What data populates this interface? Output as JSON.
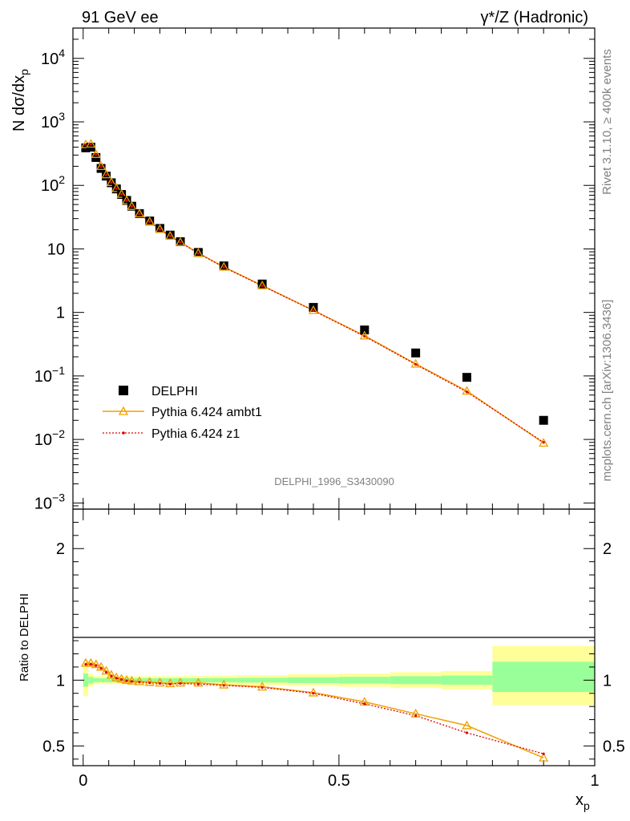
{
  "header": {
    "left": "91 GeV ee",
    "right": "γ*/Z (Hadronic)"
  },
  "side_text": {
    "top": "Rivet 3.1.10, ≥ 400k events",
    "bottom": "mcplots.cern.ch [arXiv:1306.3436]"
  },
  "watermark": "DELPHI_1996_S3430090",
  "colors": {
    "data": "#000000",
    "ambt1": "#f0a000",
    "z1": "#dd0000",
    "band_inner": "#99ff99",
    "band_outer": "#ffff99"
  },
  "chart_data": [
    {
      "type": "scatter",
      "panel": "main",
      "ylabel": "N dσ/dx",
      "ylabel_sub": "p",
      "yscale": "log",
      "ylim": [
        0.0008,
        30000
      ],
      "xlim": [
        -0.02,
        1.0
      ],
      "y_ticks": [
        {
          "v": 0.001,
          "m": "10",
          "e": "−3"
        },
        {
          "v": 0.01,
          "m": "10",
          "e": "−2"
        },
        {
          "v": 0.1,
          "m": "10",
          "e": "−1"
        },
        {
          "v": 1,
          "m": "1",
          "e": ""
        },
        {
          "v": 10,
          "m": "10",
          "e": ""
        },
        {
          "v": 100,
          "m": "10",
          "e": "2"
        },
        {
          "v": 1000,
          "m": "10",
          "e": "3"
        },
        {
          "v": 10000,
          "m": "10",
          "e": "4"
        }
      ],
      "legend": [
        "DELPHI",
        "Pythia 6.424 ambt1",
        "Pythia 6.424 z1"
      ],
      "legend_position": "lower-left",
      "x": [
        0.005,
        0.015,
        0.025,
        0.035,
        0.045,
        0.055,
        0.065,
        0.075,
        0.085,
        0.095,
        0.11,
        0.13,
        0.15,
        0.17,
        0.19,
        0.225,
        0.275,
        0.35,
        0.45,
        0.55,
        0.65,
        0.75,
        0.9
      ],
      "series": [
        {
          "name": "DELPHI",
          "values": [
            390,
            400,
            275,
            185,
            140,
            110,
            88,
            72,
            58,
            47,
            36,
            27.5,
            21,
            16.5,
            13,
            8.8,
            5.4,
            2.8,
            1.2,
            0.53,
            0.23,
            0.095,
            0.02
          ]
        },
        {
          "name": "Pythia 6.424 ambt1",
          "values": [
            440,
            450,
            310,
            200,
            148,
            112,
            90,
            73,
            58,
            47,
            36,
            27,
            20.5,
            16,
            12.8,
            8.6,
            5.2,
            2.65,
            1.08,
            0.43,
            0.155,
            0.058,
            0.0088
          ]
        },
        {
          "name": "Pythia 6.424 z1",
          "values": [
            435,
            445,
            305,
            198,
            146,
            111,
            89,
            72,
            57.5,
            46.5,
            35.5,
            26.8,
            20.3,
            15.9,
            12.7,
            8.5,
            5.15,
            2.62,
            1.07,
            0.42,
            0.152,
            0.056,
            0.009
          ]
        }
      ]
    },
    {
      "type": "line",
      "panel": "ratio",
      "ylabel": "Ratio to DELPHI",
      "xlabel": "x",
      "xlabel_sub": "p",
      "ylim": [
        0.35,
        2.3
      ],
      "xlim": [
        -0.02,
        1.0
      ],
      "y_ticks": [
        {
          "v": 0.5,
          "label": "0.5"
        },
        {
          "v": 1,
          "label": "1"
        },
        {
          "v": 2,
          "label": "2"
        }
      ],
      "x_ticks": [
        {
          "v": 0,
          "label": "0"
        },
        {
          "v": 0.5,
          "label": "0.5"
        },
        {
          "v": 1,
          "label": "1"
        }
      ],
      "x": [
        0.005,
        0.015,
        0.025,
        0.035,
        0.045,
        0.055,
        0.065,
        0.075,
        0.085,
        0.095,
        0.11,
        0.13,
        0.15,
        0.17,
        0.19,
        0.225,
        0.275,
        0.35,
        0.45,
        0.55,
        0.65,
        0.75,
        0.9
      ],
      "series": [
        {
          "name": "Pythia 6.424 ambt1",
          "values": [
            1.13,
            1.13,
            1.12,
            1.1,
            1.07,
            1.04,
            1.02,
            1.01,
            1.0,
            0.995,
            0.99,
            0.985,
            0.98,
            0.975,
            0.98,
            0.98,
            0.965,
            0.95,
            0.905,
            0.835,
            0.745,
            0.655,
            0.41
          ]
        },
        {
          "name": "Pythia 6.424 z1",
          "values": [
            1.12,
            1.12,
            1.11,
            1.09,
            1.06,
            1.03,
            1.015,
            1.005,
            0.995,
            0.99,
            0.985,
            0.98,
            0.975,
            0.97,
            0.975,
            0.97,
            0.96,
            0.945,
            0.9,
            0.82,
            0.73,
            0.6,
            0.44
          ]
        }
      ],
      "bands": [
        {
          "x0": 0.0,
          "x1": 0.01,
          "inner": [
            0.95,
            1.05
          ],
          "outer": [
            0.88,
            1.12
          ]
        },
        {
          "x0": 0.01,
          "x1": 0.02,
          "inner": [
            0.975,
            1.025
          ],
          "outer": [
            0.95,
            1.05
          ]
        },
        {
          "x0": 0.02,
          "x1": 0.2,
          "inner": [
            0.985,
            1.015
          ],
          "outer": [
            0.97,
            1.03
          ]
        },
        {
          "x0": 0.2,
          "x1": 0.25,
          "inner": [
            0.985,
            1.015
          ],
          "outer": [
            0.968,
            1.032
          ]
        },
        {
          "x0": 0.25,
          "x1": 0.3,
          "inner": [
            0.984,
            1.016
          ],
          "outer": [
            0.966,
            1.034
          ]
        },
        {
          "x0": 0.3,
          "x1": 0.4,
          "inner": [
            0.982,
            1.018
          ],
          "outer": [
            0.962,
            1.038
          ]
        },
        {
          "x0": 0.4,
          "x1": 0.5,
          "inner": [
            0.978,
            1.022
          ],
          "outer": [
            0.955,
            1.045
          ]
        },
        {
          "x0": 0.5,
          "x1": 0.6,
          "inner": [
            0.975,
            1.025
          ],
          "outer": [
            0.95,
            1.05
          ]
        },
        {
          "x0": 0.6,
          "x1": 0.7,
          "inner": [
            0.97,
            1.03
          ],
          "outer": [
            0.94,
            1.06
          ]
        },
        {
          "x0": 0.7,
          "x1": 0.8,
          "inner": [
            0.965,
            1.035
          ],
          "outer": [
            0.93,
            1.07
          ]
        },
        {
          "x0": 0.8,
          "x1": 1.0,
          "inner": [
            0.91,
            1.14
          ],
          "outer": [
            0.81,
            1.26
          ]
        }
      ]
    }
  ]
}
